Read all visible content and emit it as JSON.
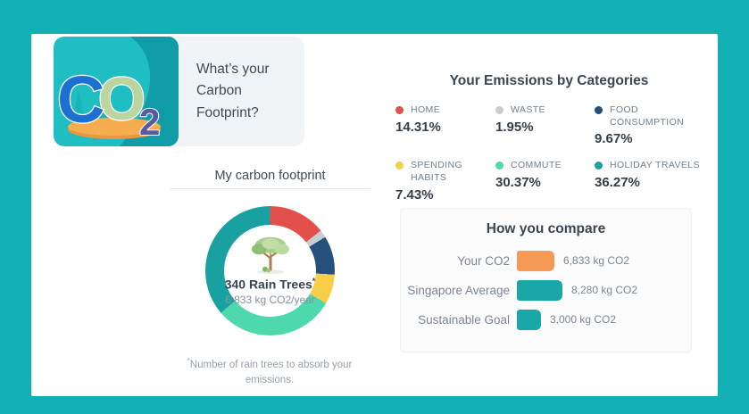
{
  "theme": {
    "page_background": "#12AFB4",
    "card_background": "#FFFFFF",
    "banner_background": "#F1F4F7",
    "accent_orange": "#F49A54",
    "accent_teal": "#1AA7A7"
  },
  "banner": {
    "title": "What’s your Carbon Footprint?",
    "logo_text": "CO2"
  },
  "footprint": {
    "title": "My carbon footprint",
    "center_primary": "340 Rain Trees",
    "asterisk": "*",
    "center_secondary": "6,833 kg CO2/year",
    "footnote_text": "Number of rain trees to absorb your emissions."
  },
  "emissions": {
    "title": "Your Emissions by Categories"
  },
  "compare": {
    "title": "How you compare"
  },
  "chart_data": [
    {
      "type": "pie",
      "donut": true,
      "title": "Your Emissions by Categories",
      "categories": [
        "HOME",
        "WASTE",
        "FOOD CONSUMPTION",
        "SPENDING HABITS",
        "COMMUTE",
        "HOLIDAY TRAVELS"
      ],
      "values": [
        14.31,
        1.95,
        9.67,
        7.43,
        30.37,
        36.27
      ],
      "labels": [
        "14.31%",
        "1.95%",
        "9.67%",
        "7.43%",
        "30.37%",
        "36.27%"
      ],
      "colors": [
        "#E2504C",
        "#C9CDD1",
        "#24507C",
        "#F8CE46",
        "#4ED9AD",
        "#18A1A0"
      ],
      "start_angle_deg": 0,
      "direction": "clockwise",
      "center_label": "340 Rain Trees",
      "center_sublabel": "6,833 kg CO2/year",
      "legend_position": "right-grid"
    },
    {
      "type": "bar",
      "orientation": "horizontal",
      "title": "How you compare",
      "categories": [
        "Your CO2",
        "Singapore Average",
        "Sustainable Goal"
      ],
      "values": [
        6833,
        8280,
        3000
      ],
      "value_labels": [
        "6,833 kg CO2",
        "8,280 kg CO2",
        "3,000 kg CO2"
      ],
      "colors": [
        "#F49A54",
        "#1AA7A7",
        "#1AA7A7"
      ],
      "xlim": [
        0,
        8280
      ],
      "unit": "kg CO2"
    }
  ]
}
